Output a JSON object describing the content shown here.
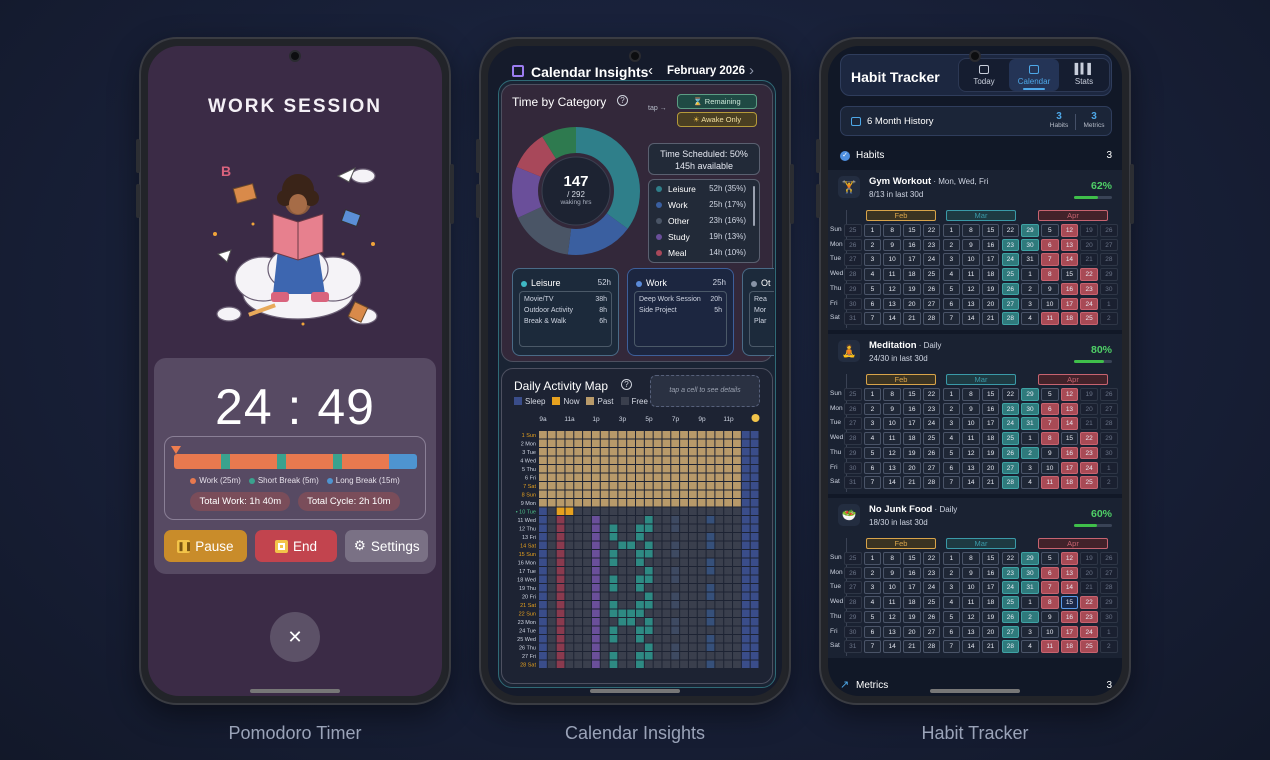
{
  "pomodoro": {
    "title": "WORK SESSION",
    "timer": "24 : 49",
    "legend": [
      "Work (25m)",
      "Short Break (5m)",
      "Long Break (15m)"
    ],
    "total_work": "Total Work: 1h 40m",
    "total_cycle": "Total Cycle: 2h 10m",
    "pause_label": "Pause",
    "end_label": "End",
    "settings_label": "Settings",
    "close_glyph": "✕",
    "caption": "Pomodoro Timer",
    "colors": {
      "work": "#e8794f",
      "short": "#3aa28e",
      "long": "#4e94d0"
    }
  },
  "calendar": {
    "title": "Calendar Insights",
    "month": "February 2026",
    "caption": "Calendar Insights",
    "time_by_category": {
      "title": "Time by Category",
      "center_value": "147",
      "center_sub": "/ 292",
      "center_sub2": "waking hrs",
      "tap": "tap →",
      "remaining": "Remaining",
      "awake_only": "Awake Only",
      "scheduled_line1": "Time Scheduled: 50%",
      "scheduled_line2": "145h available",
      "categories": [
        {
          "name": "Leisure",
          "value": "52h (35%)",
          "color": "#2f7f8a"
        },
        {
          "name": "Work",
          "value": "25h (17%)",
          "color": "#3a5fa0"
        },
        {
          "name": "Other",
          "value": "23h (16%)",
          "color": "#4a5566"
        },
        {
          "name": "Study",
          "value": "19h (13%)",
          "color": "#6a4f9a"
        },
        {
          "name": "Meal",
          "value": "14h (10%)",
          "color": "#a8485a"
        }
      ],
      "cards": [
        {
          "name": "Leisure",
          "total": "52h",
          "color": "#3fb8c4",
          "items": [
            [
              "Movie/TV",
              "38h"
            ],
            [
              "Outdoor Activity",
              "8h"
            ],
            [
              "Break & Walk",
              "6h"
            ]
          ]
        },
        {
          "name": "Work",
          "total": "25h",
          "color": "#5a8ad8",
          "items": [
            [
              "Deep Work Session",
              "20h"
            ],
            [
              "Side Project",
              "5h"
            ]
          ]
        },
        {
          "name": "Ot",
          "total": "",
          "color": "#8893a6",
          "items": [
            [
              "Rea",
              ""
            ],
            [
              "Mor",
              ""
            ],
            [
              "Plar",
              ""
            ]
          ]
        }
      ]
    },
    "activity": {
      "title": "Daily Activity Map",
      "hint": "tap a cell to see details",
      "legend": [
        "Sleep",
        "Now",
        "Past",
        "Free"
      ],
      "hours": [
        "9a",
        "11a",
        "1p",
        "3p",
        "5p",
        "7p",
        "9p",
        "11p"
      ],
      "days": [
        "1 Sun",
        "2 Mon",
        "3 Tue",
        "4 Wed",
        "5 Thu",
        "6 Fri",
        "7 Sat",
        "8 Sun",
        "9 Mon",
        "• 10 Tue",
        "11 Wed",
        "12 Thu",
        "13 Fri",
        "14 Sat",
        "15 Sun",
        "16 Mon",
        "17 Tue",
        "18 Wed",
        "19 Thu",
        "20 Fri",
        "21 Sat",
        "22 Sun",
        "23 Mon",
        "24 Tue",
        "25 Wed",
        "26 Thu",
        "27 Fri",
        "28 Sat"
      ]
    }
  },
  "habits": {
    "title": "Habit Tracker",
    "tabs": [
      "Today",
      "Calendar",
      "Stats"
    ],
    "history": "6 Month History",
    "habits_count": "3",
    "habits_label": "Habits",
    "metrics_count": "3",
    "metrics_label": "Metrics",
    "section": "Habits",
    "section_count": "3",
    "metrics_section": "Metrics",
    "metrics_section_count": "3",
    "caption": "Habit Tracker",
    "months": [
      "Feb",
      "Mar",
      "Apr"
    ],
    "weekdays": [
      "Sun",
      "Mon",
      "Tue",
      "Wed",
      "Thu",
      "Fri",
      "Sat"
    ],
    "list": [
      {
        "name": "Gym Workout",
        "sched": " · Mon, Wed, Fri",
        "sub": "8/13 in last 30d",
        "pct": "62%",
        "pctv": 0.62
      },
      {
        "name": "Meditation",
        "sched": " · Daily",
        "sub": "24/30 in last 30d",
        "pct": "80%",
        "pctv": 0.8
      },
      {
        "name": "No Junk Food",
        "sched": " · Daily",
        "sub": "18/30 in last 30d",
        "pct": "60%",
        "pctv": 0.6
      }
    ]
  }
}
